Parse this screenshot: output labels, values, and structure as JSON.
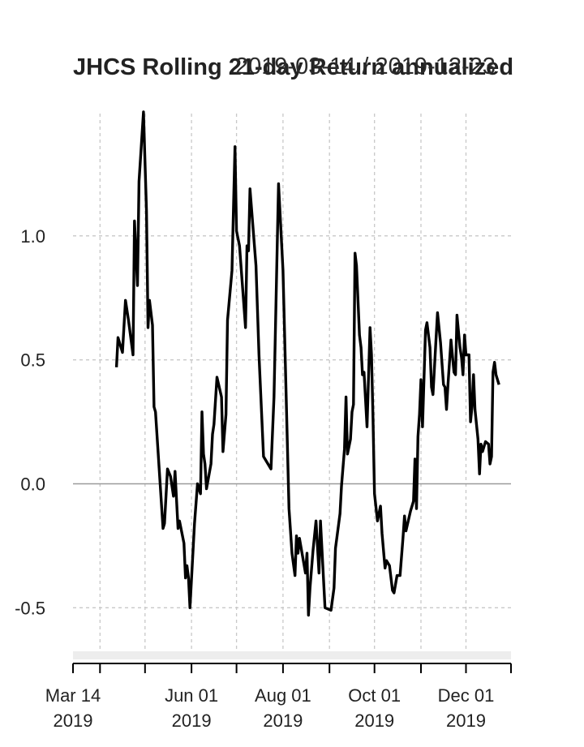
{
  "chart_data": {
    "type": "line",
    "title": "JHCS Rolling 21-day Return annualized",
    "date_range": "2019-03-14 / 2019-12-23",
    "xlabel": "",
    "ylabel": "",
    "ylim": [
      -0.62,
      1.5
    ],
    "xlim": [
      "2019-03-14",
      "2019-12-31"
    ],
    "y_ticks": [
      {
        "label": "-0.5",
        "value": -0.5
      },
      {
        "label": "0.0",
        "value": 0.0
      },
      {
        "label": "0.5",
        "value": 0.5
      },
      {
        "label": "1.0",
        "value": 1.0
      }
    ],
    "x_ticks": [
      {
        "label": "Mar 14",
        "year": "2019",
        "date": "2019-03-14"
      },
      {
        "label": "Jun 01",
        "year": "2019",
        "date": "2019-06-01"
      },
      {
        "label": "Aug 01",
        "year": "2019",
        "date": "2019-08-01"
      },
      {
        "label": "Oct 01",
        "year": "2019",
        "date": "2019-10-01"
      },
      {
        "label": "Dec 01",
        "year": "2019",
        "date": "2019-12-01"
      }
    ],
    "x_minor_ticks": [
      "2019-04-01",
      "2019-05-01",
      "2019-07-01",
      "2019-09-01",
      "2019-11-01"
    ],
    "grid_dates": [
      "2019-04-01",
      "2019-05-01",
      "2019-06-01",
      "2019-07-01",
      "2019-08-01",
      "2019-09-01",
      "2019-10-01",
      "2019-11-01",
      "2019-12-01"
    ],
    "grid": true,
    "series": [
      {
        "points": [
          [
            "2019-04-12",
            0.47
          ],
          [
            "2019-04-13",
            0.59
          ],
          [
            "2019-04-16",
            0.53
          ],
          [
            "2019-04-18",
            0.74
          ],
          [
            "2019-04-20",
            0.66
          ],
          [
            "2019-04-23",
            0.52
          ],
          [
            "2019-04-24",
            1.06
          ],
          [
            "2019-04-26",
            0.8
          ],
          [
            "2019-04-27",
            1.22
          ],
          [
            "2019-04-30",
            1.5
          ],
          [
            "2019-05-02",
            1.1
          ],
          [
            "2019-05-03",
            0.63
          ],
          [
            "2019-05-04",
            0.74
          ],
          [
            "2019-05-06",
            0.64
          ],
          [
            "2019-05-07",
            0.31
          ],
          [
            "2019-05-08",
            0.29
          ],
          [
            "2019-05-13",
            -0.18
          ],
          [
            "2019-05-14",
            -0.16
          ],
          [
            "2019-05-16",
            0.06
          ],
          [
            "2019-05-18",
            0.03
          ],
          [
            "2019-05-20",
            -0.05
          ],
          [
            "2019-05-21",
            0.05
          ],
          [
            "2019-05-23",
            -0.18
          ],
          [
            "2019-05-24",
            -0.15
          ],
          [
            "2019-05-27",
            -0.24
          ],
          [
            "2019-05-28",
            -0.38
          ],
          [
            "2019-05-29",
            -0.33
          ],
          [
            "2019-05-30",
            -0.38
          ],
          [
            "2019-05-31",
            -0.5
          ],
          [
            "2019-06-03",
            -0.16
          ],
          [
            "2019-06-05",
            0.0
          ],
          [
            "2019-06-07",
            -0.04
          ],
          [
            "2019-06-08",
            0.29
          ],
          [
            "2019-06-09",
            0.12
          ],
          [
            "2019-06-10",
            0.08
          ],
          [
            "2019-06-11",
            -0.02
          ],
          [
            "2019-06-14",
            0.08
          ],
          [
            "2019-06-15",
            0.2
          ],
          [
            "2019-06-16",
            0.24
          ],
          [
            "2019-06-18",
            0.43
          ],
          [
            "2019-06-21",
            0.35
          ],
          [
            "2019-06-22",
            0.13
          ],
          [
            "2019-06-24",
            0.28
          ],
          [
            "2019-06-25",
            0.66
          ],
          [
            "2019-06-28",
            0.86
          ],
          [
            "2019-06-30",
            1.36
          ],
          [
            "2019-07-01",
            1.02
          ],
          [
            "2019-07-03",
            0.96
          ],
          [
            "2019-07-07",
            0.63
          ],
          [
            "2019-07-08",
            0.96
          ],
          [
            "2019-07-09",
            0.94
          ],
          [
            "2019-07-10",
            1.19
          ],
          [
            "2019-07-14",
            0.88
          ],
          [
            "2019-07-16",
            0.52
          ],
          [
            "2019-07-19",
            0.11
          ],
          [
            "2019-07-24",
            0.06
          ],
          [
            "2019-07-26",
            0.35
          ],
          [
            "2019-07-29",
            1.21
          ],
          [
            "2019-08-01",
            0.86
          ],
          [
            "2019-08-05",
            -0.1
          ],
          [
            "2019-08-07",
            -0.28
          ],
          [
            "2019-08-09",
            -0.37
          ],
          [
            "2019-08-10",
            -0.21
          ],
          [
            "2019-08-11",
            -0.28
          ],
          [
            "2019-08-12",
            -0.22
          ],
          [
            "2019-08-14",
            -0.29
          ],
          [
            "2019-08-16",
            -0.36
          ],
          [
            "2019-08-17",
            -0.28
          ],
          [
            "2019-08-18",
            -0.53
          ],
          [
            "2019-08-19",
            -0.42
          ],
          [
            "2019-08-21",
            -0.27
          ],
          [
            "2019-08-23",
            -0.15
          ],
          [
            "2019-08-25",
            -0.36
          ],
          [
            "2019-08-26",
            -0.15
          ],
          [
            "2019-08-29",
            -0.5
          ],
          [
            "2019-09-02",
            -0.51
          ],
          [
            "2019-09-04",
            -0.42
          ],
          [
            "2019-09-05",
            -0.26
          ],
          [
            "2019-09-08",
            -0.12
          ],
          [
            "2019-09-09",
            -0.01
          ],
          [
            "2019-09-11",
            0.14
          ],
          [
            "2019-09-12",
            0.35
          ],
          [
            "2019-09-13",
            0.12
          ],
          [
            "2019-09-15",
            0.18
          ],
          [
            "2019-09-16",
            0.29
          ],
          [
            "2019-09-17",
            0.32
          ],
          [
            "2019-09-18",
            0.93
          ],
          [
            "2019-09-19",
            0.88
          ],
          [
            "2019-09-21",
            0.6
          ],
          [
            "2019-09-22",
            0.55
          ],
          [
            "2019-09-23",
            0.44
          ],
          [
            "2019-09-24",
            0.45
          ],
          [
            "2019-09-26",
            0.23
          ],
          [
            "2019-09-28",
            0.63
          ],
          [
            "2019-09-29",
            0.52
          ],
          [
            "2019-09-30",
            0.26
          ],
          [
            "2019-10-01",
            -0.04
          ],
          [
            "2019-10-03",
            -0.15
          ],
          [
            "2019-10-05",
            -0.09
          ],
          [
            "2019-10-06",
            -0.2
          ],
          [
            "2019-10-08",
            -0.34
          ],
          [
            "2019-10-09",
            -0.31
          ],
          [
            "2019-10-11",
            -0.33
          ],
          [
            "2019-10-13",
            -0.43
          ],
          [
            "2019-10-14",
            -0.44
          ],
          [
            "2019-10-16",
            -0.37
          ],
          [
            "2019-10-18",
            -0.37
          ],
          [
            "2019-10-20",
            -0.22
          ],
          [
            "2019-10-21",
            -0.13
          ],
          [
            "2019-10-22",
            -0.19
          ],
          [
            "2019-10-25",
            -0.11
          ],
          [
            "2019-10-27",
            -0.07
          ],
          [
            "2019-10-28",
            0.1
          ],
          [
            "2019-10-29",
            -0.1
          ],
          [
            "2019-10-30",
            0.19
          ],
          [
            "2019-10-31",
            0.28
          ],
          [
            "2019-11-01",
            0.42
          ],
          [
            "2019-11-02",
            0.23
          ],
          [
            "2019-11-04",
            0.62
          ],
          [
            "2019-11-05",
            0.65
          ],
          [
            "2019-11-07",
            0.55
          ],
          [
            "2019-11-08",
            0.39
          ],
          [
            "2019-11-09",
            0.36
          ],
          [
            "2019-11-11",
            0.58
          ],
          [
            "2019-11-12",
            0.69
          ],
          [
            "2019-11-14",
            0.57
          ],
          [
            "2019-11-16",
            0.4
          ],
          [
            "2019-11-17",
            0.39
          ],
          [
            "2019-11-18",
            0.3
          ],
          [
            "2019-11-19",
            0.4
          ],
          [
            "2019-11-21",
            0.58
          ],
          [
            "2019-11-23",
            0.45
          ],
          [
            "2019-11-24",
            0.44
          ],
          [
            "2019-11-25",
            0.68
          ],
          [
            "2019-11-27",
            0.55
          ],
          [
            "2019-11-28",
            0.51
          ],
          [
            "2019-11-29",
            0.44
          ],
          [
            "2019-11-30",
            0.6
          ],
          [
            "2019-12-01",
            0.52
          ],
          [
            "2019-12-03",
            0.52
          ],
          [
            "2019-12-04",
            0.25
          ],
          [
            "2019-12-05",
            0.31
          ],
          [
            "2019-12-06",
            0.44
          ],
          [
            "2019-12-07",
            0.3
          ],
          [
            "2019-12-09",
            0.18
          ],
          [
            "2019-12-10",
            0.04
          ],
          [
            "2019-12-11",
            0.16
          ],
          [
            "2019-12-12",
            0.13
          ],
          [
            "2019-12-13",
            0.15
          ],
          [
            "2019-12-14",
            0.17
          ],
          [
            "2019-12-16",
            0.16
          ],
          [
            "2019-12-17",
            0.08
          ],
          [
            "2019-12-18",
            0.11
          ],
          [
            "2019-12-19",
            0.45
          ],
          [
            "2019-12-20",
            0.49
          ],
          [
            "2019-12-21",
            0.44
          ],
          [
            "2019-12-23",
            0.4
          ]
        ]
      }
    ]
  }
}
